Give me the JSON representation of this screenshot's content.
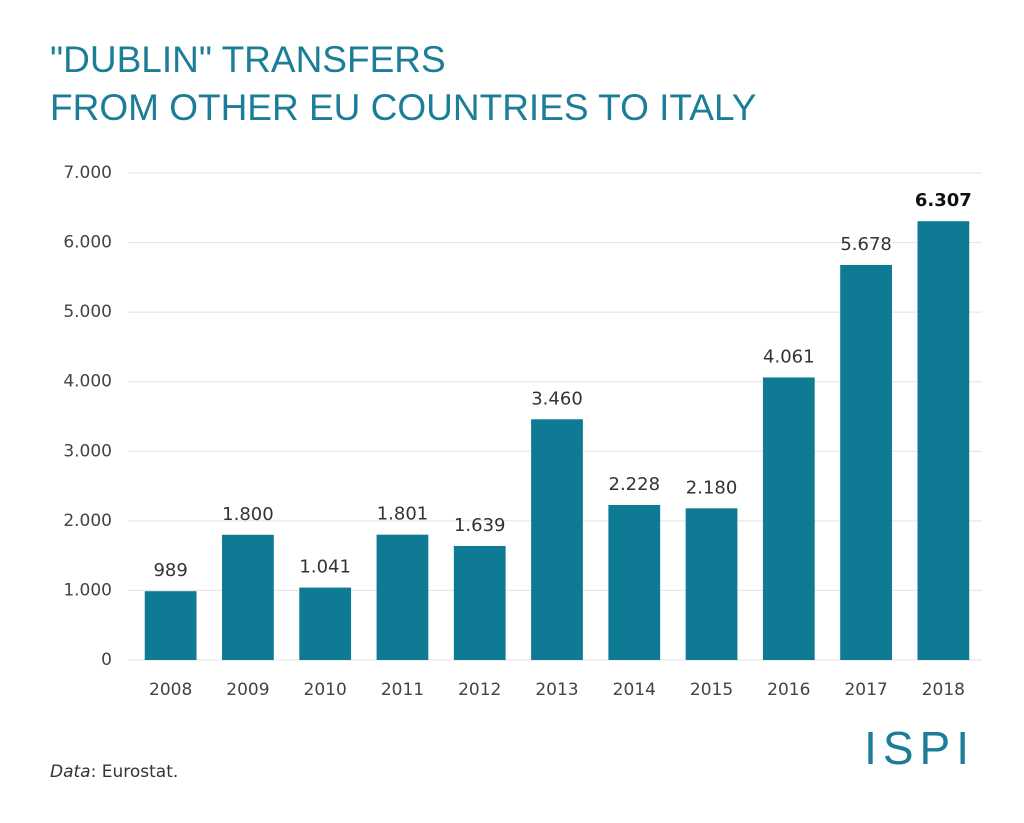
{
  "chart_data": {
    "type": "bar",
    "title": [
      "\"DUBLIN\" TRANSFERS",
      "FROM OTHER EU COUNTRIES TO ITALY"
    ],
    "categories": [
      "2008",
      "2009",
      "2010",
      "2011",
      "2012",
      "2013",
      "2014",
      "2015",
      "2016",
      "2017",
      "2018"
    ],
    "values": [
      989,
      1800,
      1041,
      1801,
      1639,
      3460,
      2228,
      2180,
      4061,
      5678,
      6307
    ],
    "value_labels": [
      "989",
      "1.800",
      "1.041",
      "1.801",
      "1.639",
      "3.460",
      "2.228",
      "2.180",
      "4.061",
      "5.678",
      "6.307"
    ],
    "emphasis_category": "2018",
    "color": "#0f7a94",
    "ylim": [
      0,
      7000
    ],
    "yticks": [
      0,
      {
        "value": 1000,
        "label": "1.000"
      },
      {
        "value": 2000,
        "label": "2.000"
      },
      {
        "value": 3000,
        "label": "3.000"
      },
      {
        "value": 4000,
        "label": "4.000"
      },
      {
        "value": 5000,
        "label": "5.000"
      },
      {
        "value": 6000,
        "label": "6.000"
      },
      {
        "value": 7000,
        "label": "7.000"
      }
    ],
    "grid": true,
    "source": [
      "Data",
      ": Eurostat."
    ],
    "logo": "ISPI"
  }
}
